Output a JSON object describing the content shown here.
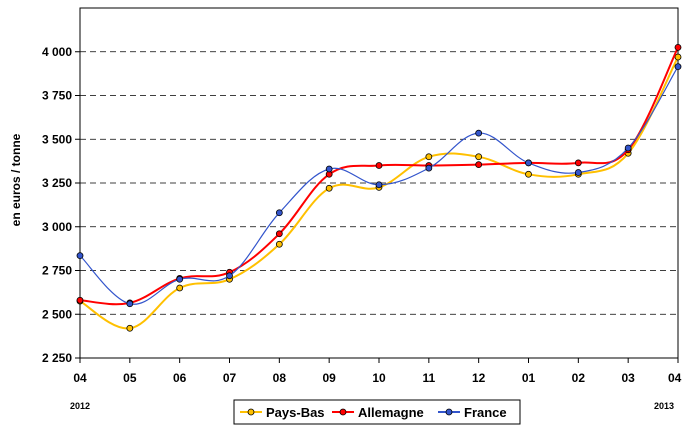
{
  "chart_data": {
    "type": "line",
    "title": "",
    "xlabel": "",
    "ylabel": "en euros / tonne",
    "categories": [
      "04",
      "05",
      "06",
      "07",
      "08",
      "09",
      "10",
      "11",
      "12",
      "01",
      "02",
      "03",
      "04"
    ],
    "year_labels": [
      {
        "text": "2012",
        "at": 0
      },
      {
        "text": "2013",
        "at": 12
      }
    ],
    "ylim": [
      2250,
      4250
    ],
    "yticks": [
      {
        "v": 2250,
        "label": "2 250"
      },
      {
        "v": 2500,
        "label": "2 500"
      },
      {
        "v": 2750,
        "label": "2 750"
      },
      {
        "v": 3000,
        "label": "3 000"
      },
      {
        "v": 3250,
        "label": "3 250"
      },
      {
        "v": 3500,
        "label": "3 500"
      },
      {
        "v": 3750,
        "label": "3 750"
      },
      {
        "v": 4000,
        "label": "4 000"
      }
    ],
    "grid": "horizontal-dashed",
    "legend_position": "bottom",
    "series": [
      {
        "name": "Pays-Bas",
        "color": "#FFC000",
        "values": [
          2575,
          2420,
          2650,
          2700,
          2900,
          3220,
          3225,
          3400,
          3400,
          3300,
          3300,
          3420,
          3970
        ]
      },
      {
        "name": "Allemagne",
        "color": "#FF0000",
        "values": [
          2580,
          2565,
          2705,
          2740,
          2960,
          3300,
          3350,
          3350,
          3355,
          3365,
          3365,
          3440,
          4025
        ]
      },
      {
        "name": "France",
        "color": "#3355CC",
        "values": [
          2835,
          2560,
          2700,
          2720,
          3080,
          3330,
          3240,
          3335,
          3535,
          3365,
          3310,
          3450,
          3915
        ]
      }
    ]
  }
}
